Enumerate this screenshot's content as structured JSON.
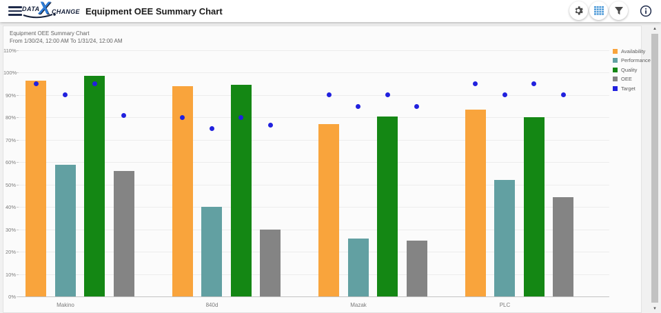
{
  "header": {
    "title": "Equipment OEE Summary Chart",
    "logo": {
      "part1": "DATA",
      "x": "X",
      "part2": "CHANGE"
    },
    "icons": [
      {
        "name": "settings-gear-icon"
      },
      {
        "name": "grid-view-icon"
      },
      {
        "name": "filter-funnel-icon"
      },
      {
        "name": "info-icon"
      }
    ]
  },
  "chart": {
    "title": "Equipment OEE Summary Chart",
    "subtitle": "From 1/30/24, 12:00 AM To 1/31/24, 12:00 AM"
  },
  "chart_data": {
    "type": "bar",
    "title": "Equipment OEE Summary Chart",
    "subtitle": "From 1/30/24, 12:00 AM To 1/31/24, 12:00 AM",
    "categories": [
      "Makino",
      "840d",
      "Mazak",
      "PLC"
    ],
    "series": [
      {
        "name": "Availability",
        "type": "bar",
        "color": "#f9a43c",
        "values": [
          96.5,
          94,
          77,
          83.5
        ]
      },
      {
        "name": "Performance",
        "type": "bar",
        "color": "#62a0a2",
        "values": [
          59,
          40,
          26,
          52
        ]
      },
      {
        "name": "Quality",
        "type": "bar",
        "color": "#148714",
        "values": [
          98.5,
          94.5,
          80.5,
          80
        ]
      },
      {
        "name": "OEE",
        "type": "bar",
        "color": "#848484",
        "values": [
          56,
          30,
          25,
          44.5
        ]
      },
      {
        "name": "Target",
        "type": "scatter",
        "color": "#2121de",
        "note": "one target dot per bar, per category",
        "values": [
          [
            95,
            90,
            95,
            81
          ],
          [
            80,
            75,
            80,
            76.5
          ],
          [
            90,
            85,
            90,
            85
          ],
          [
            95,
            90,
            95,
            90
          ]
        ]
      }
    ],
    "ylim": [
      0,
      110
    ],
    "ytick_step": 10,
    "ytick_suffix": "%",
    "grid": true,
    "legend_position": "right"
  }
}
